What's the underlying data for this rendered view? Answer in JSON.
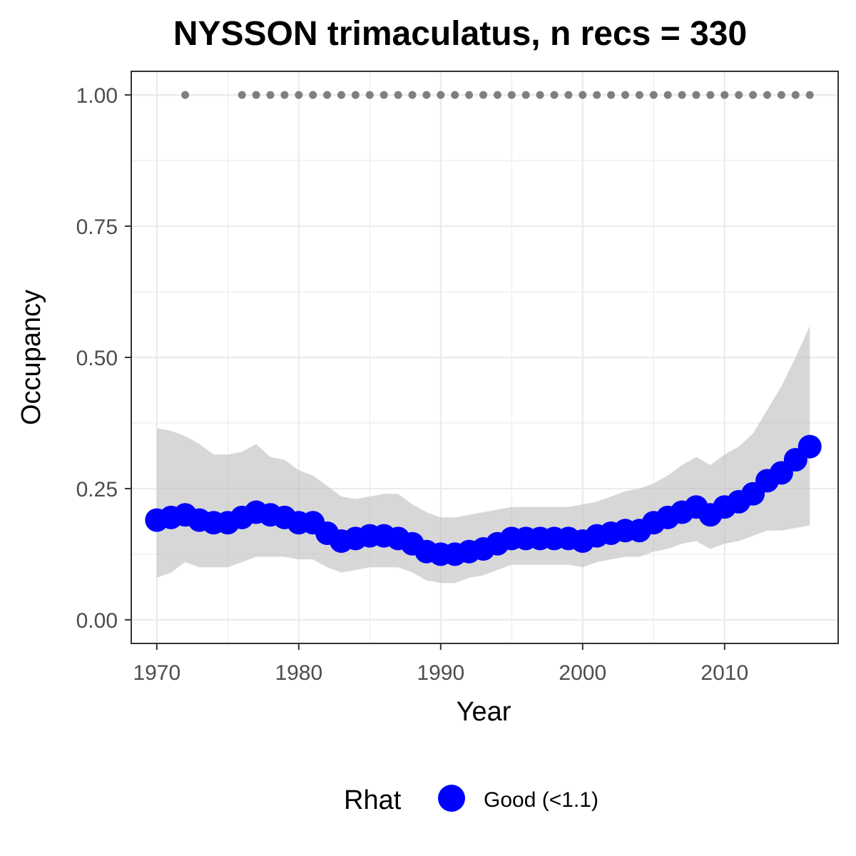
{
  "chart_data": {
    "type": "line",
    "title": "NYSSON trimaculatus, n recs = 330",
    "xlabel": "Year",
    "ylabel": "Occupancy",
    "xlim": [
      1968.2,
      2018.0
    ],
    "ylim": [
      -0.045,
      1.045
    ],
    "grid": true,
    "x_ticks": [
      1970,
      1980,
      1990,
      2000,
      2010
    ],
    "y_ticks": [
      0,
      0.25,
      0.5,
      0.75,
      1.0
    ],
    "y_tick_labels": [
      "0.00",
      "0.25",
      "0.50",
      "0.75",
      "1.00"
    ],
    "x_tick_labels": [
      "1970",
      "1980",
      "1990",
      "2000",
      "2010"
    ],
    "series": [
      {
        "kind": "mean_occupancy",
        "x": [
          1970,
          1971,
          1972,
          1973,
          1974,
          1975,
          1976,
          1977,
          1978,
          1979,
          1980,
          1981,
          1982,
          1983,
          1984,
          1985,
          1986,
          1987,
          1988,
          1989,
          1990,
          1991,
          1992,
          1993,
          1994,
          1995,
          1996,
          1997,
          1998,
          1999,
          2000,
          2001,
          2002,
          2003,
          2004,
          2005,
          2006,
          2007,
          2008,
          2009,
          2010,
          2011,
          2012,
          2013,
          2014,
          2015,
          2016
        ],
        "y": [
          0.19,
          0.195,
          0.2,
          0.19,
          0.185,
          0.185,
          0.195,
          0.205,
          0.2,
          0.195,
          0.185,
          0.185,
          0.165,
          0.15,
          0.155,
          0.16,
          0.16,
          0.155,
          0.145,
          0.13,
          0.125,
          0.125,
          0.13,
          0.135,
          0.145,
          0.155,
          0.155,
          0.155,
          0.155,
          0.155,
          0.15,
          0.16,
          0.165,
          0.17,
          0.17,
          0.185,
          0.195,
          0.205,
          0.215,
          0.2,
          0.215,
          0.225,
          0.24,
          0.265,
          0.28,
          0.305,
          0.33
        ],
        "lower": [
          0.08,
          0.09,
          0.11,
          0.1,
          0.1,
          0.1,
          0.11,
          0.12,
          0.12,
          0.12,
          0.115,
          0.115,
          0.1,
          0.09,
          0.095,
          0.1,
          0.1,
          0.1,
          0.09,
          0.075,
          0.07,
          0.07,
          0.08,
          0.085,
          0.095,
          0.105,
          0.105,
          0.105,
          0.105,
          0.105,
          0.1,
          0.11,
          0.115,
          0.12,
          0.12,
          0.13,
          0.135,
          0.145,
          0.15,
          0.135,
          0.145,
          0.15,
          0.16,
          0.17,
          0.17,
          0.175,
          0.18
        ],
        "upper": [
          0.365,
          0.36,
          0.35,
          0.335,
          0.315,
          0.315,
          0.32,
          0.335,
          0.31,
          0.305,
          0.285,
          0.275,
          0.255,
          0.235,
          0.23,
          0.235,
          0.24,
          0.24,
          0.22,
          0.205,
          0.195,
          0.195,
          0.2,
          0.205,
          0.21,
          0.215,
          0.215,
          0.215,
          0.215,
          0.215,
          0.22,
          0.225,
          0.235,
          0.245,
          0.25,
          0.26,
          0.275,
          0.295,
          0.31,
          0.295,
          0.315,
          0.33,
          0.355,
          0.4,
          0.445,
          0.5,
          0.56
        ]
      },
      {
        "kind": "record_years",
        "x": [
          1972,
          1976,
          1977,
          1978,
          1979,
          1980,
          1981,
          1982,
          1983,
          1984,
          1985,
          1986,
          1987,
          1988,
          1989,
          1990,
          1991,
          1992,
          1993,
          1994,
          1995,
          1996,
          1997,
          1998,
          1999,
          2000,
          2001,
          2002,
          2003,
          2004,
          2005,
          2006,
          2007,
          2008,
          2009,
          2010,
          2011,
          2012,
          2013,
          2014,
          2015,
          2016
        ],
        "y": 1.0
      }
    ],
    "legend": {
      "title": "Rhat",
      "entries": [
        {
          "label": "Good (<1.1)",
          "color": "#0000ff"
        }
      ],
      "placement": "bottom"
    },
    "colors": {
      "points": "#0000ff",
      "ribbon": "#bebebe",
      "record_dots": "#7f7f7f",
      "grid": "#ebebeb",
      "panel_border": "#333333",
      "axis_text": "#4d4d4d"
    }
  }
}
